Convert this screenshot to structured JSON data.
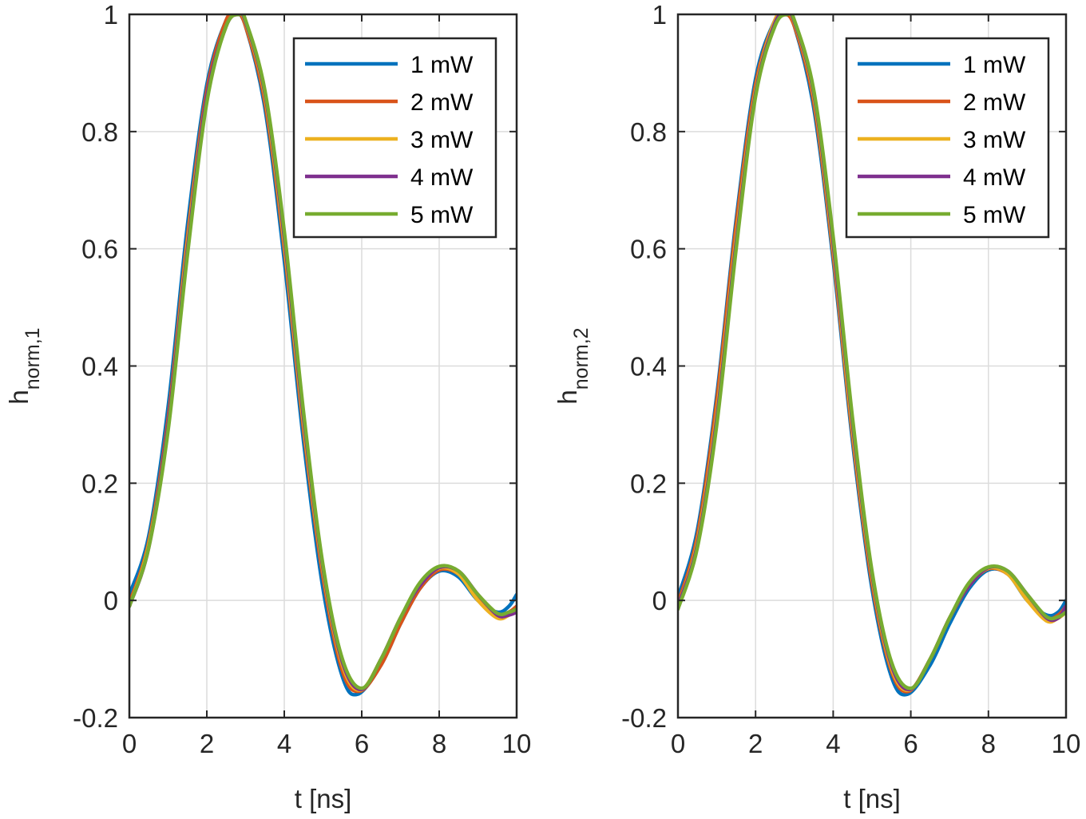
{
  "colors": {
    "series": [
      "#0072BD",
      "#D95319",
      "#EDB120",
      "#7E2F8E",
      "#77AC30"
    ],
    "grid": "#dcdcdc",
    "axis": "#262626"
  },
  "chart_data": [
    {
      "type": "line",
      "xlabel": "t [ns]",
      "ylabel_main": "h",
      "ylabel_sub": "norm,1",
      "xlim": [
        0,
        10
      ],
      "ylim": [
        -0.2,
        1
      ],
      "xticks": [
        0,
        2,
        4,
        6,
        8,
        10
      ],
      "xtick_labels": [
        "0",
        "2",
        "4",
        "6",
        "8",
        "10"
      ],
      "yticks": [
        -0.2,
        0,
        0.2,
        0.4,
        0.6,
        0.8,
        1
      ],
      "ytick_labels": [
        "-0.2",
        "0",
        "0.2",
        "0.4",
        "0.6",
        "0.8",
        "1"
      ],
      "grid": true,
      "legend_position": "top-right",
      "series": [
        {
          "name": "1 mW",
          "x": [
            0,
            0.5,
            1,
            1.5,
            2,
            2.5,
            2.75,
            3,
            3.5,
            4,
            4.5,
            5,
            5.5,
            5.9,
            6.5,
            7,
            7.5,
            8,
            8.5,
            9,
            9.5,
            9.8,
            10
          ],
          "y": [
            0.01,
            0.11,
            0.33,
            0.64,
            0.88,
            0.99,
            1.0,
            0.98,
            0.84,
            0.58,
            0.27,
            0.02,
            -0.13,
            -0.16,
            -0.11,
            -0.04,
            0.02,
            0.05,
            0.04,
            0.0,
            -0.02,
            -0.01,
            0.01
          ]
        },
        {
          "name": "2 mW",
          "x": [
            0,
            0.5,
            1,
            1.5,
            2,
            2.5,
            2.78,
            3,
            3.5,
            4,
            4.5,
            5,
            5.5,
            5.95,
            6.5,
            7,
            7.5,
            8,
            8.5,
            9,
            9.5,
            9.8,
            10
          ],
          "y": [
            -0.005,
            0.1,
            0.31,
            0.62,
            0.87,
            0.99,
            1.0,
            0.98,
            0.85,
            0.6,
            0.29,
            0.04,
            -0.12,
            -0.155,
            -0.11,
            -0.04,
            0.02,
            0.052,
            0.045,
            0.005,
            -0.025,
            -0.02,
            -0.01
          ]
        },
        {
          "name": "3 mW",
          "x": [
            0,
            0.5,
            1,
            1.5,
            2,
            2.5,
            2.8,
            3,
            3.5,
            4,
            4.5,
            5,
            5.5,
            5.97,
            6.5,
            7,
            7.5,
            8,
            8.5,
            9,
            9.5,
            9.8,
            10
          ],
          "y": [
            -0.01,
            0.095,
            0.3,
            0.61,
            0.86,
            0.98,
            1.0,
            0.985,
            0.86,
            0.61,
            0.3,
            0.05,
            -0.11,
            -0.153,
            -0.1,
            -0.03,
            0.025,
            0.055,
            0.045,
            0.0,
            -0.03,
            -0.025,
            -0.015
          ]
        },
        {
          "name": "4 mW",
          "x": [
            0,
            0.5,
            1,
            1.5,
            2,
            2.5,
            2.82,
            3,
            3.5,
            4,
            4.5,
            5,
            5.5,
            5.99,
            6.5,
            7,
            7.5,
            8,
            8.5,
            9,
            9.5,
            9.8,
            10
          ],
          "y": [
            -0.01,
            0.09,
            0.3,
            0.6,
            0.86,
            0.98,
            1.0,
            0.987,
            0.865,
            0.62,
            0.31,
            0.055,
            -0.105,
            -0.152,
            -0.1,
            -0.03,
            0.025,
            0.056,
            0.05,
            0.01,
            -0.025,
            -0.025,
            -0.02
          ]
        },
        {
          "name": "5 mW",
          "x": [
            0,
            0.5,
            1,
            1.5,
            2,
            2.5,
            2.85,
            3,
            3.5,
            4,
            4.5,
            5,
            5.5,
            6.0,
            6.5,
            7,
            7.5,
            8,
            8.5,
            9,
            9.5,
            9.8,
            10
          ],
          "y": [
            -0.01,
            0.09,
            0.29,
            0.59,
            0.85,
            0.98,
            1.0,
            0.99,
            0.87,
            0.63,
            0.32,
            0.06,
            -0.1,
            -0.15,
            -0.1,
            -0.03,
            0.03,
            0.058,
            0.05,
            0.01,
            -0.022,
            -0.02,
            -0.015
          ]
        }
      ]
    },
    {
      "type": "line",
      "xlabel": "t [ns]",
      "ylabel_main": "h",
      "ylabel_sub": "norm,2",
      "xlim": [
        0,
        10
      ],
      "ylim": [
        -0.2,
        1
      ],
      "xticks": [
        0,
        2,
        4,
        6,
        8,
        10
      ],
      "xtick_labels": [
        "0",
        "2",
        "4",
        "6",
        "8",
        "10"
      ],
      "yticks": [
        -0.2,
        0,
        0.2,
        0.4,
        0.6,
        0.8,
        1
      ],
      "ytick_labels": [
        "-0.2",
        "0",
        "0.2",
        "0.4",
        "0.6",
        "0.8",
        "1"
      ],
      "grid": true,
      "legend_position": "top-right",
      "series": [
        {
          "name": "1 mW",
          "x": [
            0,
            0.5,
            1,
            1.5,
            2,
            2.5,
            2.75,
            3,
            3.5,
            4,
            4.5,
            5,
            5.5,
            5.92,
            6.5,
            7,
            7.5,
            8,
            8.5,
            9,
            9.5,
            9.8,
            10
          ],
          "y": [
            0.005,
            0.12,
            0.35,
            0.65,
            0.89,
            0.99,
            1.0,
            0.98,
            0.84,
            0.58,
            0.27,
            0.02,
            -0.13,
            -0.16,
            -0.11,
            -0.04,
            0.02,
            0.052,
            0.045,
            0.0,
            -0.025,
            -0.02,
            0.0
          ]
        },
        {
          "name": "2 mW",
          "x": [
            0,
            0.5,
            1,
            1.5,
            2,
            2.5,
            2.72,
            3,
            3.5,
            4,
            4.5,
            5,
            5.5,
            5.95,
            6.5,
            7,
            7.5,
            8,
            8.5,
            9,
            9.5,
            9.8,
            10
          ],
          "y": [
            -0.005,
            0.11,
            0.34,
            0.64,
            0.88,
            0.99,
            1.0,
            0.98,
            0.85,
            0.59,
            0.28,
            0.03,
            -0.12,
            -0.155,
            -0.1,
            -0.03,
            0.025,
            0.054,
            0.045,
            0.005,
            -0.03,
            -0.025,
            -0.01
          ]
        },
        {
          "name": "3 mW",
          "x": [
            0,
            0.5,
            1,
            1.5,
            2,
            2.5,
            2.78,
            3,
            3.5,
            4,
            4.5,
            5,
            5.5,
            5.97,
            6.5,
            7,
            7.5,
            8,
            8.5,
            9,
            9.5,
            9.8,
            10
          ],
          "y": [
            -0.01,
            0.1,
            0.32,
            0.62,
            0.87,
            0.99,
            1.0,
            0.985,
            0.86,
            0.6,
            0.29,
            0.04,
            -0.115,
            -0.153,
            -0.1,
            -0.03,
            0.025,
            0.055,
            0.045,
            0.0,
            -0.035,
            -0.03,
            -0.02
          ]
        },
        {
          "name": "4 mW",
          "x": [
            0,
            0.5,
            1,
            1.5,
            2,
            2.5,
            2.8,
            3,
            3.5,
            4,
            4.5,
            5,
            5.5,
            5.98,
            6.5,
            7,
            7.5,
            8,
            8.5,
            9,
            9.5,
            9.8,
            10
          ],
          "y": [
            -0.01,
            0.095,
            0.31,
            0.61,
            0.865,
            0.985,
            1.0,
            0.987,
            0.865,
            0.61,
            0.3,
            0.045,
            -0.11,
            -0.152,
            -0.1,
            -0.03,
            0.025,
            0.056,
            0.05,
            0.01,
            -0.03,
            -0.03,
            -0.01
          ]
        },
        {
          "name": "5 mW",
          "x": [
            0,
            0.5,
            1,
            1.5,
            2,
            2.5,
            2.83,
            3,
            3.5,
            4,
            4.5,
            5,
            5.5,
            6.0,
            6.5,
            7,
            7.5,
            8,
            8.5,
            9,
            9.5,
            9.8,
            10
          ],
          "y": [
            -0.015,
            0.09,
            0.3,
            0.6,
            0.86,
            0.98,
            1.0,
            0.99,
            0.87,
            0.62,
            0.31,
            0.05,
            -0.105,
            -0.15,
            -0.1,
            -0.03,
            0.03,
            0.057,
            0.05,
            0.01,
            -0.028,
            -0.028,
            -0.02
          ]
        }
      ]
    }
  ]
}
